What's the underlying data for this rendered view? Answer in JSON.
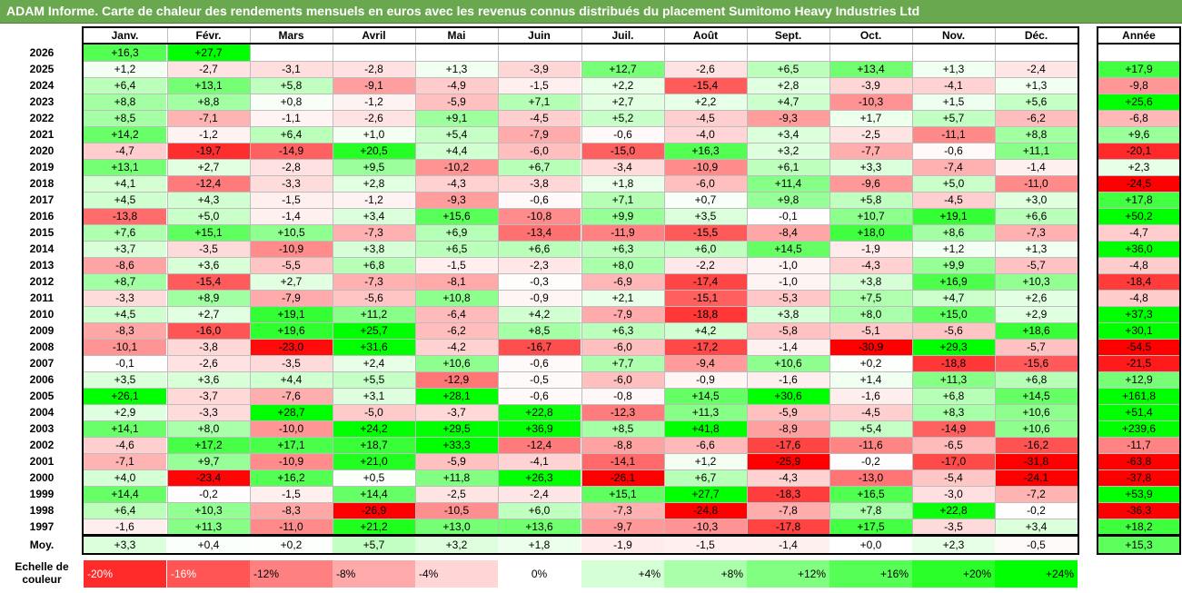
{
  "title": "ADAM Informe. Carte de chaleur des rendements mensuels en euros avec les revenus connus distribués du placement Sumitomo Heavy Industries Ltd",
  "chart_data": {
    "type": "heatmap",
    "title": "ADAM Informe. Carte de chaleur des rendements mensuels en euros avec les revenus connus distribués du placement Sumitomo Heavy Industries Ltd",
    "months": [
      "Janv.",
      "Févr.",
      "Mars",
      "Avril",
      "Mai",
      "Juin",
      "Juil.",
      "Août",
      "Sept.",
      "Oct.",
      "Nov.",
      "Déc."
    ],
    "year_header": "Année",
    "rows": [
      {
        "year": "2026",
        "values": [
          16.3,
          27.7,
          null,
          null,
          null,
          null,
          null,
          null,
          null,
          null,
          null,
          null
        ],
        "annual": null
      },
      {
        "year": "2025",
        "values": [
          1.2,
          -2.7,
          -3.1,
          -2.8,
          1.3,
          -3.9,
          12.7,
          -2.6,
          6.5,
          13.4,
          1.3,
          -2.4
        ],
        "annual": 17.9
      },
      {
        "year": "2024",
        "values": [
          6.4,
          13.1,
          5.8,
          -9.1,
          -4.9,
          -1.5,
          2.2,
          -15.4,
          2.8,
          -3.9,
          -4.1,
          1.3
        ],
        "annual": -9.8
      },
      {
        "year": "2023",
        "values": [
          8.8,
          8.8,
          0.8,
          -1.2,
          -5.9,
          7.1,
          2.7,
          2.2,
          4.7,
          -10.3,
          1.5,
          5.6
        ],
        "annual": 25.6
      },
      {
        "year": "2022",
        "values": [
          8.5,
          -7.1,
          -1.1,
          -2.6,
          9.1,
          -4.5,
          5.2,
          -4.5,
          -9.3,
          1.7,
          5.7,
          -6.2
        ],
        "annual": -6.8
      },
      {
        "year": "2021",
        "values": [
          14.2,
          -1.2,
          6.4,
          1.0,
          5.4,
          -7.9,
          -0.6,
          -4.0,
          3.4,
          -2.5,
          -11.1,
          8.8
        ],
        "annual": 9.6
      },
      {
        "year": "2020",
        "values": [
          -4.7,
          -19.7,
          -14.9,
          20.5,
          4.4,
          -6.0,
          -15.0,
          16.3,
          3.2,
          -7.7,
          -0.6,
          11.1
        ],
        "annual": -20.1
      },
      {
        "year": "2019",
        "values": [
          13.1,
          2.7,
          -2.8,
          9.5,
          -10.2,
          6.7,
          -3.4,
          -10.9,
          6.1,
          3.3,
          -7.4,
          -1.4
        ],
        "annual": 2.3
      },
      {
        "year": "2018",
        "values": [
          4.1,
          -12.4,
          -3.3,
          2.8,
          -4.3,
          -3.8,
          1.8,
          -6.0,
          11.4,
          -9.6,
          5.0,
          -11.0
        ],
        "annual": -24.5
      },
      {
        "year": "2017",
        "values": [
          4.5,
          4.3,
          -1.5,
          -1.2,
          -9.3,
          -0.6,
          7.1,
          0.7,
          9.8,
          5.8,
          -4.5,
          3.0
        ],
        "annual": 17.8
      },
      {
        "year": "2016",
        "values": [
          -13.8,
          5.0,
          -1.4,
          3.4,
          15.6,
          -10.8,
          9.9,
          3.5,
          -0.1,
          10.7,
          19.1,
          6.6
        ],
        "annual": 50.2
      },
      {
        "year": "2015",
        "values": [
          7.6,
          15.1,
          10.5,
          -7.3,
          6.9,
          -13.4,
          -11.9,
          -15.5,
          -8.4,
          18.0,
          8.6,
          -7.3
        ],
        "annual": -4.7
      },
      {
        "year": "2014",
        "values": [
          3.7,
          -3.5,
          -10.9,
          3.8,
          6.5,
          6.6,
          6.3,
          6.0,
          14.5,
          -1.9,
          1.2,
          1.3
        ],
        "annual": 36.0
      },
      {
        "year": "2013",
        "values": [
          -8.6,
          3.6,
          -5.5,
          6.8,
          -1.5,
          -2.3,
          8.0,
          -2.2,
          -1.0,
          -4.3,
          9.9,
          -5.7
        ],
        "annual": -4.8
      },
      {
        "year": "2012",
        "values": [
          8.7,
          -15.4,
          2.7,
          -7.3,
          -8.1,
          -0.3,
          -6.9,
          -17.4,
          -1.0,
          3.8,
          16.9,
          10.3
        ],
        "annual": -18.4
      },
      {
        "year": "2011",
        "values": [
          -3.3,
          8.9,
          -7.9,
          -5.6,
          10.8,
          -0.9,
          2.1,
          -15.1,
          -5.3,
          7.5,
          4.7,
          2.6
        ],
        "annual": -4.8
      },
      {
        "year": "2010",
        "values": [
          4.5,
          2.7,
          19.1,
          11.2,
          -6.4,
          4.2,
          -7.9,
          -18.8,
          3.8,
          8.0,
          15.0,
          2.9
        ],
        "annual": 37.3
      },
      {
        "year": "2009",
        "values": [
          -8.3,
          -16.0,
          19.6,
          25.7,
          -6.2,
          8.5,
          6.3,
          4.2,
          -5.8,
          -5.1,
          -5.6,
          18.6
        ],
        "annual": 30.1
      },
      {
        "year": "2008",
        "values": [
          -10.1,
          -3.8,
          -23.0,
          31.6,
          -4.2,
          -16.7,
          -6.0,
          -17.2,
          -1.4,
          -30.9,
          29.3,
          -5.7
        ],
        "annual": -54.5
      },
      {
        "year": "2007",
        "values": [
          -0.1,
          -2.6,
          -3.5,
          2.4,
          10.6,
          -0.6,
          7.7,
          -9.4,
          10.6,
          0.2,
          -18.8,
          -15.6
        ],
        "annual": -21.5
      },
      {
        "year": "2006",
        "values": [
          3.5,
          3.6,
          4.4,
          5.5,
          -12.9,
          -0.5,
          -6.0,
          -0.9,
          -1.6,
          1.4,
          11.3,
          6.8
        ],
        "annual": 12.9
      },
      {
        "year": "2005",
        "values": [
          26.1,
          -3.7,
          -7.6,
          3.1,
          28.1,
          -0.6,
          -0.8,
          14.5,
          30.6,
          -1.6,
          6.8,
          14.5
        ],
        "annual": 161.8
      },
      {
        "year": "2004",
        "values": [
          2.9,
          -3.3,
          28.7,
          -5.0,
          -3.7,
          22.8,
          -12.3,
          11.3,
          -5.9,
          -4.5,
          8.3,
          10.6
        ],
        "annual": 51.4
      },
      {
        "year": "2003",
        "values": [
          14.1,
          8.0,
          -10.0,
          24.2,
          29.5,
          36.9,
          8.5,
          41.8,
          -8.9,
          5.4,
          -14.9,
          10.6
        ],
        "annual": 239.6
      },
      {
        "year": "2002",
        "values": [
          -4.6,
          17.2,
          17.1,
          18.7,
          33.3,
          -12.4,
          -8.8,
          -6.6,
          -17.6,
          -11.6,
          -6.5,
          -16.2
        ],
        "annual": -11.7
      },
      {
        "year": "2001",
        "values": [
          -7.1,
          9.7,
          -10.9,
          21.0,
          -5.9,
          -4.1,
          -14.1,
          1.2,
          -25.9,
          -0.2,
          -17.0,
          -31.8
        ],
        "annual": -63.8
      },
      {
        "year": "2000",
        "values": [
          4.0,
          -23.4,
          16.2,
          0.5,
          11.8,
          26.3,
          -26.1,
          6.7,
          -4.3,
          -13.0,
          -5.4,
          -24.1
        ],
        "annual": -37.8
      },
      {
        "year": "1999",
        "values": [
          14.4,
          -0.2,
          -1.5,
          14.4,
          -2.5,
          -2.4,
          15.1,
          27.7,
          -18.3,
          16.5,
          -3.0,
          -7.2
        ],
        "annual": 53.9
      },
      {
        "year": "1998",
        "values": [
          6.4,
          10.3,
          -8.3,
          -26.9,
          -10.5,
          6.0,
          -7.3,
          -24.8,
          -7.8,
          7.8,
          22.8,
          -0.2
        ],
        "annual": -36.3
      },
      {
        "year": "1997",
        "values": [
          -1.6,
          11.3,
          -11.0,
          21.2,
          13.0,
          13.6,
          -9.7,
          -10.3,
          -17.8,
          17.5,
          -3.5,
          3.4
        ],
        "annual": 18.2
      }
    ],
    "average_label": "Moy.",
    "average_values": [
      3.3,
      0.4,
      0.2,
      5.7,
      3.2,
      1.8,
      -1.9,
      -1.5,
      -1.4,
      0.0,
      2.3,
      -0.5
    ],
    "average_annual": 15.3,
    "scale_label": "Echelle de couleur",
    "scale": [
      "-20%",
      "-16%",
      "-12%",
      "-8%",
      "-4%",
      "0%",
      "+4%",
      "+8%",
      "+12%",
      "+16%",
      "+20%",
      "+24%"
    ],
    "scale_values": [
      -20,
      -16,
      -12,
      -8,
      -4,
      0,
      4,
      8,
      12,
      16,
      20,
      24
    ],
    "colors": {
      "negative_max": "#ff0000",
      "positive_max": "#00ff00",
      "zero": "#ffffff",
      "title_bg": "#6aa84f"
    }
  }
}
